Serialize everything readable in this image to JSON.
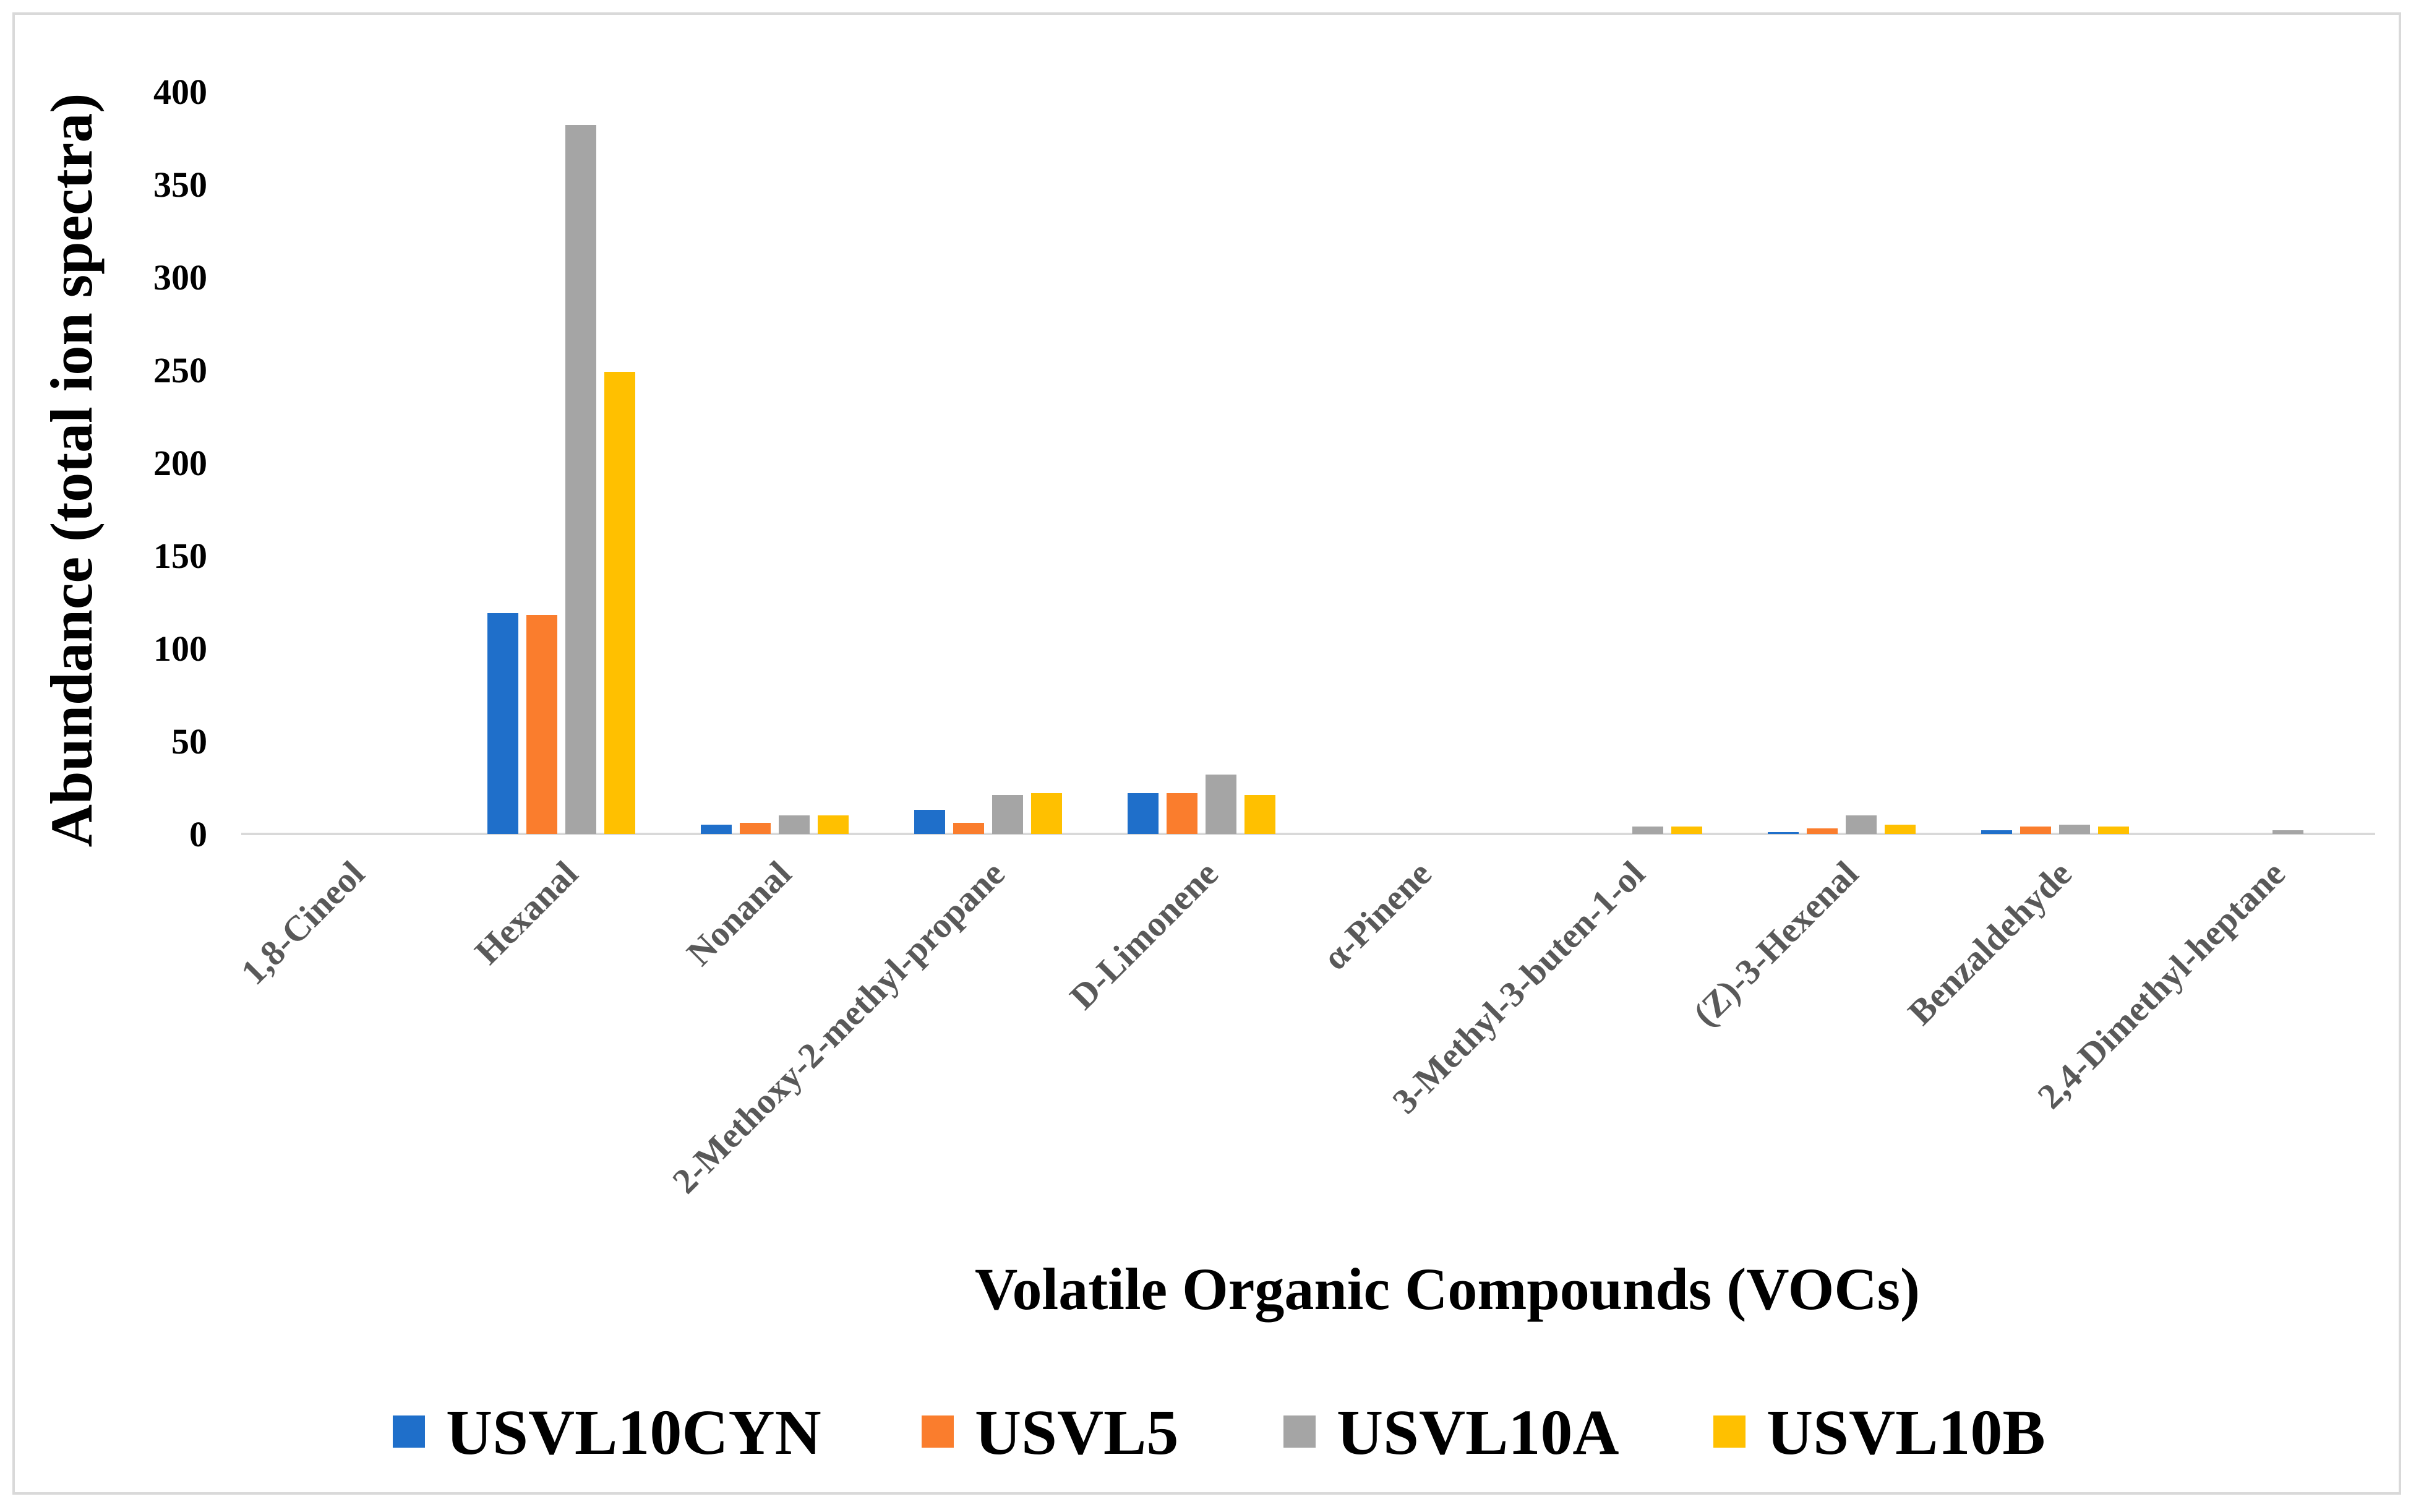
{
  "chart_data": {
    "type": "bar",
    "title": "",
    "xlabel": "Volatile Organic Compounds (VOCs)",
    "ylabel": "Abundance (total ion spectra)",
    "ylim": [
      0,
      400
    ],
    "yticks": [
      "0",
      "50",
      "100",
      "150",
      "200",
      "250",
      "300",
      "350",
      "400"
    ],
    "grid": false,
    "legend_position": "bottom",
    "categories": [
      "1,8-Cineol",
      "Hexanal",
      "Nonanal",
      "2-Methoxy-2-methyl-propane",
      "D-Limonene",
      "α-Pinene",
      "3-Methyl-3-buten-1-ol",
      "(Z)-3-Hexenal",
      "Benzaldehyde",
      "2,4-Dimethyl-heptane"
    ],
    "series": [
      {
        "name": "USVL10CYN",
        "color": "#1f6fca",
        "values": [
          0,
          119,
          5,
          13,
          22,
          0,
          0,
          1,
          2,
          0
        ]
      },
      {
        "name": "USVL5",
        "color": "#fa7d2d",
        "values": [
          0,
          118,
          6,
          6,
          22,
          0,
          0,
          3,
          4,
          0
        ]
      },
      {
        "name": "USVL10A",
        "color": "#a5a5a5",
        "values": [
          0,
          382,
          10,
          21,
          32,
          0,
          4,
          10,
          5,
          2
        ]
      },
      {
        "name": "USVL10B",
        "color": "#ffc000",
        "values": [
          0,
          249,
          10,
          22,
          21,
          0,
          4,
          5,
          4,
          0
        ]
      }
    ]
  }
}
